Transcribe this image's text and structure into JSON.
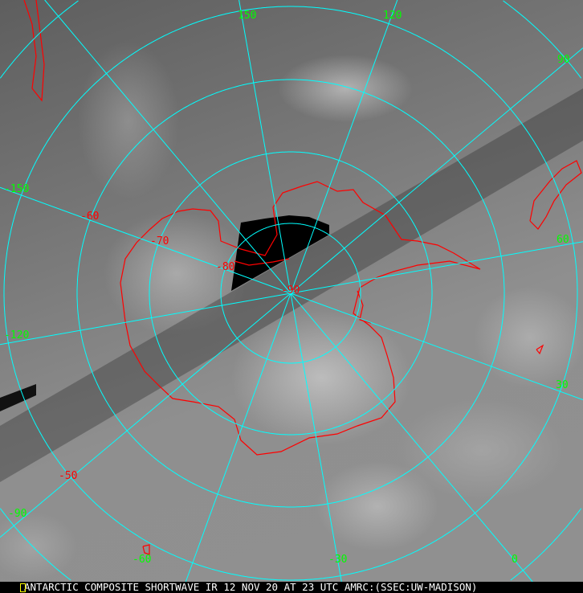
{
  "caption": "ANTARCTIC COMPOSITE SHORTWAVE IR 12 NOV 20 AT 23 UTC AMRC:(SSEC:UW-MADISON)",
  "caption_marker_icon": "yellow-box-marker-icon",
  "colors": {
    "graticule": "#00ffff",
    "coastline": "#ff0000",
    "longitude_labels": "#00ff00",
    "latitude_labels": "#ff0000"
  },
  "projection": "south-polar-stereographic",
  "longitude_labels": {
    "l150": "150",
    "l120": "120",
    "l90": "90",
    "l60": "60",
    "l30": "30",
    "l0": "0",
    "lm30": "-30",
    "lm60": "-60",
    "lm90": "-90",
    "lm120": "-120",
    "lm150": "-150"
  },
  "latitude_labels": {
    "m50": "-50",
    "m60": "-60",
    "m70": "-70",
    "m80": "-80",
    "m90": "-90"
  }
}
